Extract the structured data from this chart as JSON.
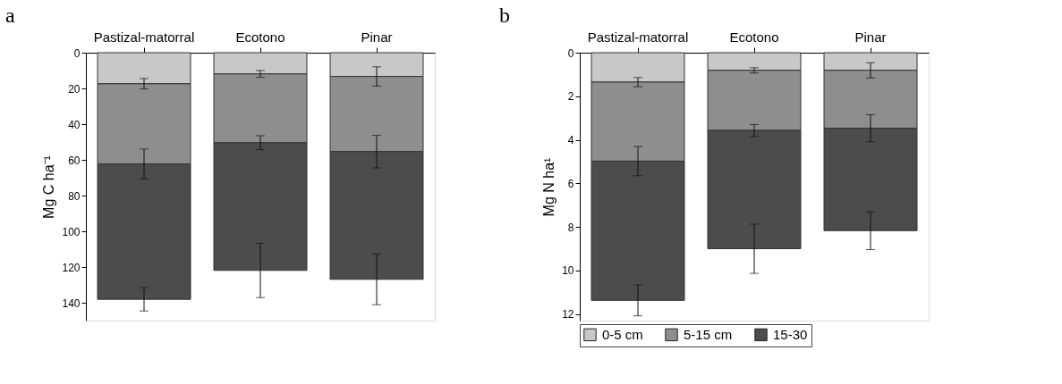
{
  "chart_data": [
    {
      "type": "bar",
      "title": "a",
      "stacked": true,
      "categories": [
        "Pastizal-matorral",
        "Ecotono",
        "Pinar"
      ],
      "ylabel": "Mg C ha⁻¹",
      "ylim": [
        150,
        0
      ],
      "yticks": [
        0,
        20,
        40,
        60,
        80,
        100,
        120,
        140
      ],
      "legend": false,
      "grid": false,
      "series": [
        {
          "color": "#c8c8c8",
          "values": [
            17.4,
            11.9,
            13.3
          ],
          "errors": [
            2.9,
            1.9,
            5.4
          ]
        },
        {
          "color": "#8e8e8e",
          "values": [
            44.9,
            38.5,
            42.1
          ],
          "errors": [
            8.3,
            3.9,
            9.1
          ]
        },
        {
          "color": "#4c4c4c",
          "values": [
            75.8,
            71.5,
            71.5
          ],
          "errors": [
            6.5,
            15.2,
            14.2
          ]
        }
      ]
    },
    {
      "type": "bar",
      "title": "b",
      "stacked": true,
      "categories": [
        "Pastizal-matorral",
        "Ecotono",
        "Pinar"
      ],
      "ylabel": "Mg N ha¹",
      "ylim": [
        12.3,
        0
      ],
      "yticks": [
        0,
        2,
        4,
        6,
        8,
        10,
        12
      ],
      "legend": "bottom",
      "grid": false,
      "series": [
        {
          "name": "0-5 cm",
          "color": "#c8c8c8",
          "values": [
            1.35,
            0.81,
            0.81
          ],
          "errors": [
            0.21,
            0.12,
            0.35
          ]
        },
        {
          "name": "5-15 cm",
          "color": "#8e8e8e",
          "values": [
            3.63,
            2.76,
            2.66
          ],
          "errors": [
            0.67,
            0.27,
            0.62
          ]
        },
        {
          "name": "15-30",
          "color": "#4c4c4c",
          "values": [
            6.39,
            5.43,
            4.7
          ],
          "errors": [
            0.71,
            1.13,
            0.87
          ]
        }
      ]
    }
  ]
}
